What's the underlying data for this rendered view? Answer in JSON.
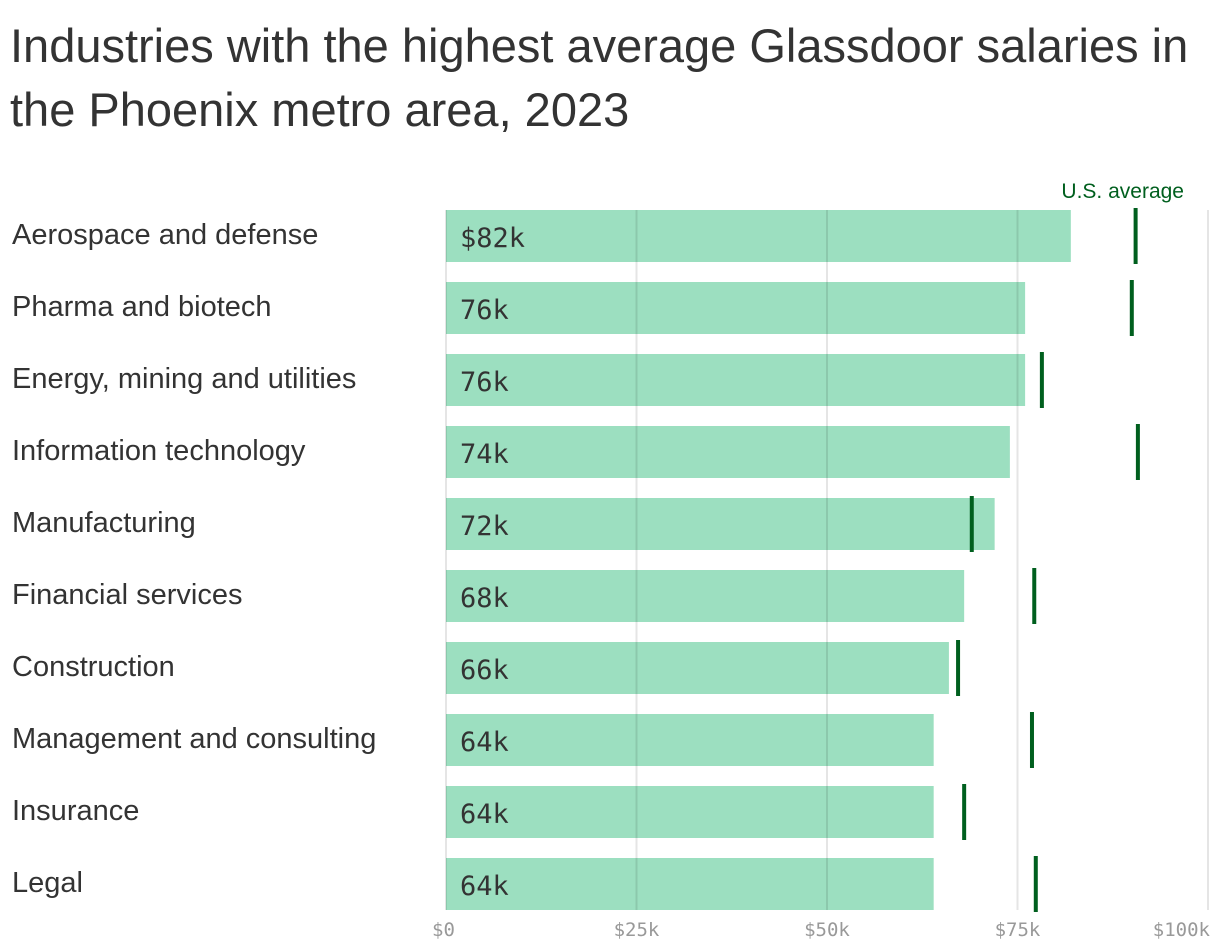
{
  "chart_data": {
    "type": "bar",
    "orientation": "horizontal",
    "title": "Industries with the highest average Glassdoor salaries in the Phoenix metro area, 2023",
    "categories": [
      "Aerospace and defense",
      "Pharma and biotech",
      "Energy, mining and utilities",
      "Information technology",
      "Manufacturing",
      "Financial services",
      "Construction",
      "Management and consulting",
      "Insurance",
      "Legal"
    ],
    "series": [
      {
        "values": [
          82,
          76,
          76,
          74,
          72,
          68,
          66,
          64,
          64,
          64
        ],
        "color": "#9cdfc0"
      },
      {
        "name": "U.S. average",
        "values": [
          90.5,
          90.0,
          78.2,
          90.8,
          69.0,
          77.2,
          67.2,
          76.9,
          68.0,
          77.4
        ],
        "color": "#005f1e",
        "mark": "tick"
      }
    ],
    "data_labels": [
      "$82k",
      "76k",
      "76k",
      "74k",
      "72k",
      "68k",
      "66k",
      "64k",
      "64k",
      "64k"
    ],
    "xlim": [
      0,
      100
    ],
    "xticks": [
      0,
      25,
      50,
      75,
      100
    ],
    "xtick_labels": [
      "$0",
      "$25k",
      "$50k",
      "$75k",
      "$100k"
    ],
    "grid": true,
    "unit": "thousand USD"
  }
}
